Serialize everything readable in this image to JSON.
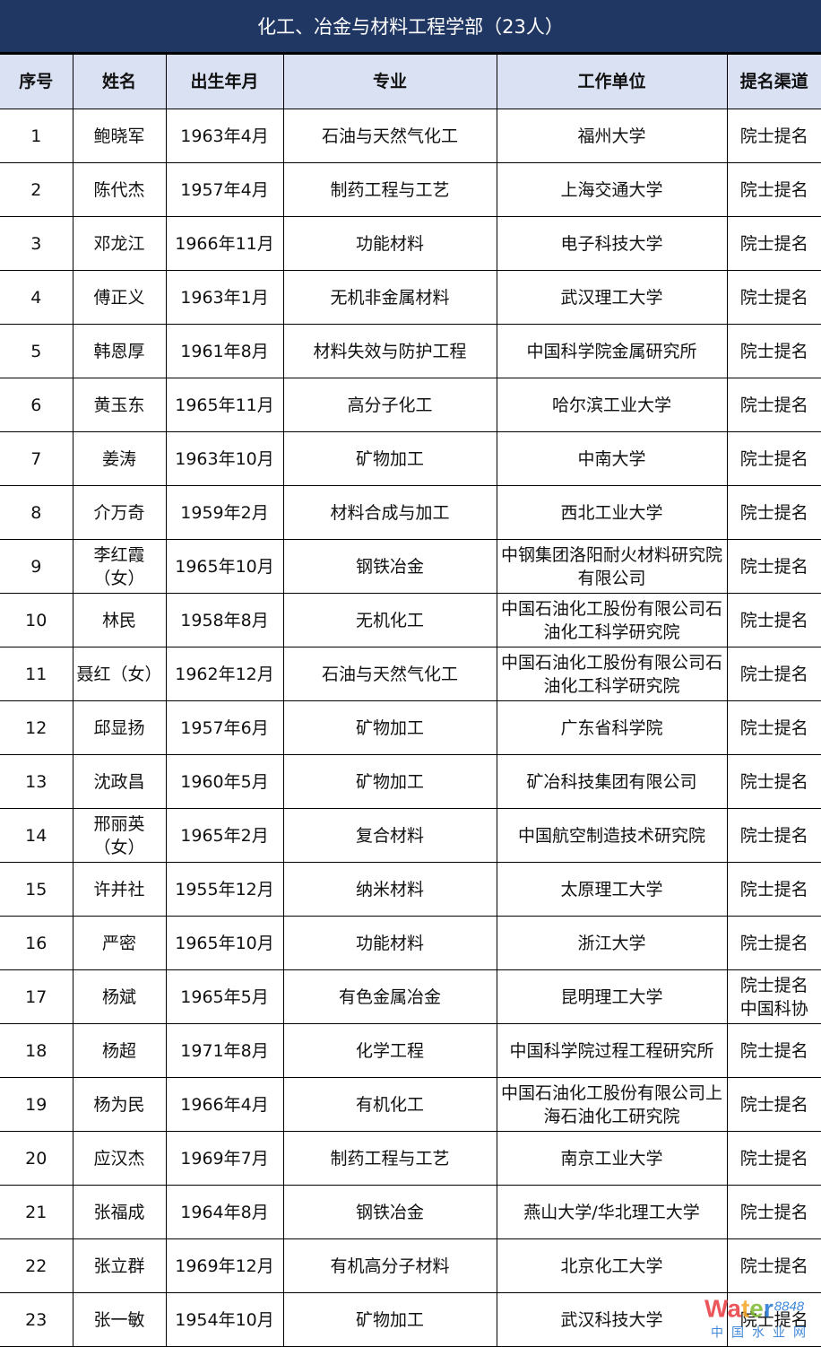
{
  "title": "化工、冶金与材料工程学部（23人）",
  "columns": [
    "序号",
    "姓名",
    "出生年月",
    "专业",
    "工作单位",
    "提名渠道"
  ],
  "rows": [
    [
      "1",
      "鲍晓军",
      "1963年4月",
      "石油与天然气化工",
      "福州大学",
      "院士提名"
    ],
    [
      "2",
      "陈代杰",
      "1957年4月",
      "制药工程与工艺",
      "上海交通大学",
      "院士提名"
    ],
    [
      "3",
      "邓龙江",
      "1966年11月",
      "功能材料",
      "电子科技大学",
      "院士提名"
    ],
    [
      "4",
      "傅正义",
      "1963年1月",
      "无机非金属材料",
      "武汉理工大学",
      "院士提名"
    ],
    [
      "5",
      "韩恩厚",
      "1961年8月",
      "材料失效与防护工程",
      "中国科学院金属研究所",
      "院士提名"
    ],
    [
      "6",
      "黄玉东",
      "1965年11月",
      "高分子化工",
      "哈尔滨工业大学",
      "院士提名"
    ],
    [
      "7",
      "姜涛",
      "1963年10月",
      "矿物加工",
      "中南大学",
      "院士提名"
    ],
    [
      "8",
      "介万奇",
      "1959年2月",
      "材料合成与加工",
      "西北工业大学",
      "院士提名"
    ],
    [
      "9",
      "李红霞（女）",
      "1965年10月",
      "钢铁冶金",
      "中钢集团洛阳耐火材料研究院有限公司",
      "院士提名"
    ],
    [
      "10",
      "林民",
      "1958年8月",
      "无机化工",
      "中国石油化工股份有限公司石油化工科学研究院",
      "院士提名"
    ],
    [
      "11",
      "聂红（女）",
      "1962年12月",
      "石油与天然气化工",
      "中国石油化工股份有限公司石油化工科学研究院",
      "院士提名"
    ],
    [
      "12",
      "邱显扬",
      "1957年6月",
      "矿物加工",
      "广东省科学院",
      "院士提名"
    ],
    [
      "13",
      "沈政昌",
      "1960年5月",
      "矿物加工",
      "矿冶科技集团有限公司",
      "院士提名"
    ],
    [
      "14",
      "邢丽英（女）",
      "1965年2月",
      "复合材料",
      "中国航空制造技术研究院",
      "院士提名"
    ],
    [
      "15",
      "许并社",
      "1955年12月",
      "纳米材料",
      "太原理工大学",
      "院士提名"
    ],
    [
      "16",
      "严密",
      "1965年10月",
      "功能材料",
      "浙江大学",
      "院士提名"
    ],
    [
      "17",
      "杨斌",
      "1965年5月",
      "有色金属冶金",
      "昆明理工大学",
      "院士提名 中国科协"
    ],
    [
      "18",
      "杨超",
      "1971年8月",
      "化学工程",
      "中国科学院过程工程研究所",
      "院士提名"
    ],
    [
      "19",
      "杨为民",
      "1966年4月",
      "有机化工",
      "中国石油化工股份有限公司上海石油化工研究院",
      "院士提名"
    ],
    [
      "20",
      "应汉杰",
      "1969年7月",
      "制药工程与工艺",
      "南京工业大学",
      "院士提名"
    ],
    [
      "21",
      "张福成",
      "1964年8月",
      "钢铁冶金",
      "燕山大学/华北理工大学",
      "院士提名"
    ],
    [
      "22",
      "张立群",
      "1969年12月",
      "有机高分子材料",
      "北京化工大学",
      "院士提名"
    ],
    [
      "23",
      "张一敏",
      "1954年10月",
      "矿物加工",
      "武汉科技大学",
      "院士提名"
    ]
  ],
  "watermark": {
    "text": "Water 8848 中国水业网"
  },
  "colors": {
    "title_bg": "#203764",
    "header_bg": "#d9e1f2"
  }
}
